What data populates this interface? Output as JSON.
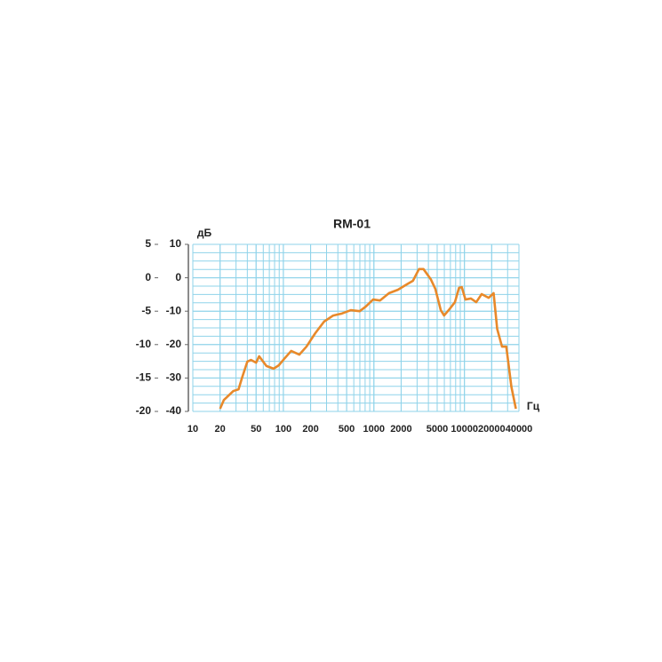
{
  "chart_data": {
    "type": "line",
    "title": "RM-01",
    "x_label": "Гц",
    "y_label": "дБ",
    "log_x": true,
    "grid": true,
    "xlim": [
      10,
      40000
    ],
    "xticks": [
      10,
      20,
      50,
      100,
      200,
      500,
      1000,
      2000,
      5000,
      10000,
      20000,
      40000
    ],
    "ylim": [
      -40,
      10
    ],
    "yticks": [
      10,
      0,
      -10,
      -20,
      -30,
      -40
    ],
    "y2lim": [
      -20,
      5
    ],
    "y2ticks": [
      5,
      0,
      -5,
      -10,
      -15,
      -20
    ],
    "series": [
      {
        "color": "#e8892a",
        "x": [
          20,
          22,
          28,
          32,
          35,
          40,
          44,
          50,
          54,
          65,
          78,
          89,
          102,
          122,
          150,
          180,
          225,
          282,
          355,
          443,
          556,
          697,
          815,
          980,
          1170,
          1470,
          1840,
          2300,
          2700,
          3150,
          3530,
          4240,
          4770,
          5480,
          5960,
          6840,
          7850,
          8720,
          9350,
          10250,
          11800,
          13500,
          15500,
          18500,
          21000,
          23000,
          26000,
          29000,
          33000,
          37000
        ],
        "values": [
          -39.2,
          -36.6,
          -33.9,
          -33.4,
          -29.9,
          -25.1,
          -24.6,
          -25.4,
          -23.5,
          -26.4,
          -27.2,
          -26.2,
          -24.3,
          -21.9,
          -23.0,
          -20.6,
          -16.6,
          -13.1,
          -11.3,
          -10.7,
          -9.7,
          -10.0,
          -8.6,
          -6.5,
          -6.8,
          -4.6,
          -3.6,
          -2.0,
          -0.9,
          2.6,
          2.6,
          -0.4,
          -3.3,
          -9.7,
          -11.3,
          -9.4,
          -7.3,
          -3.0,
          -2.8,
          -6.5,
          -6.2,
          -7.3,
          -4.9,
          -6.0,
          -4.6,
          -15.3,
          -20.6,
          -20.6,
          -32.6,
          -39.2
        ]
      }
    ]
  }
}
